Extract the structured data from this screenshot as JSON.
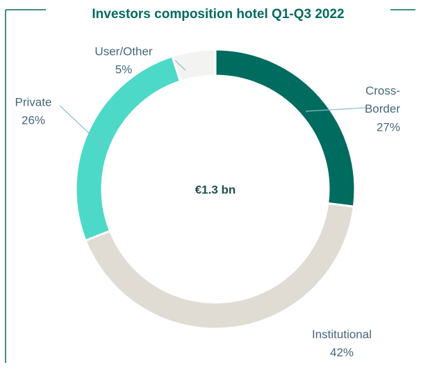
{
  "chart_data": {
    "type": "donut",
    "title": "Investors composition hotel Q1-Q3 2022",
    "center_label": "€1.3 bn",
    "categories": [
      "Cross-Border",
      "Institutional",
      "Private",
      "User/Other"
    ],
    "values": [
      27,
      42,
      26,
      5
    ],
    "value_labels": [
      "27%",
      "42%",
      "26%",
      "5%"
    ],
    "colors": [
      "#006b5f",
      "#e0dcd3",
      "#4dd9c8",
      "#f3f3f1"
    ]
  }
}
